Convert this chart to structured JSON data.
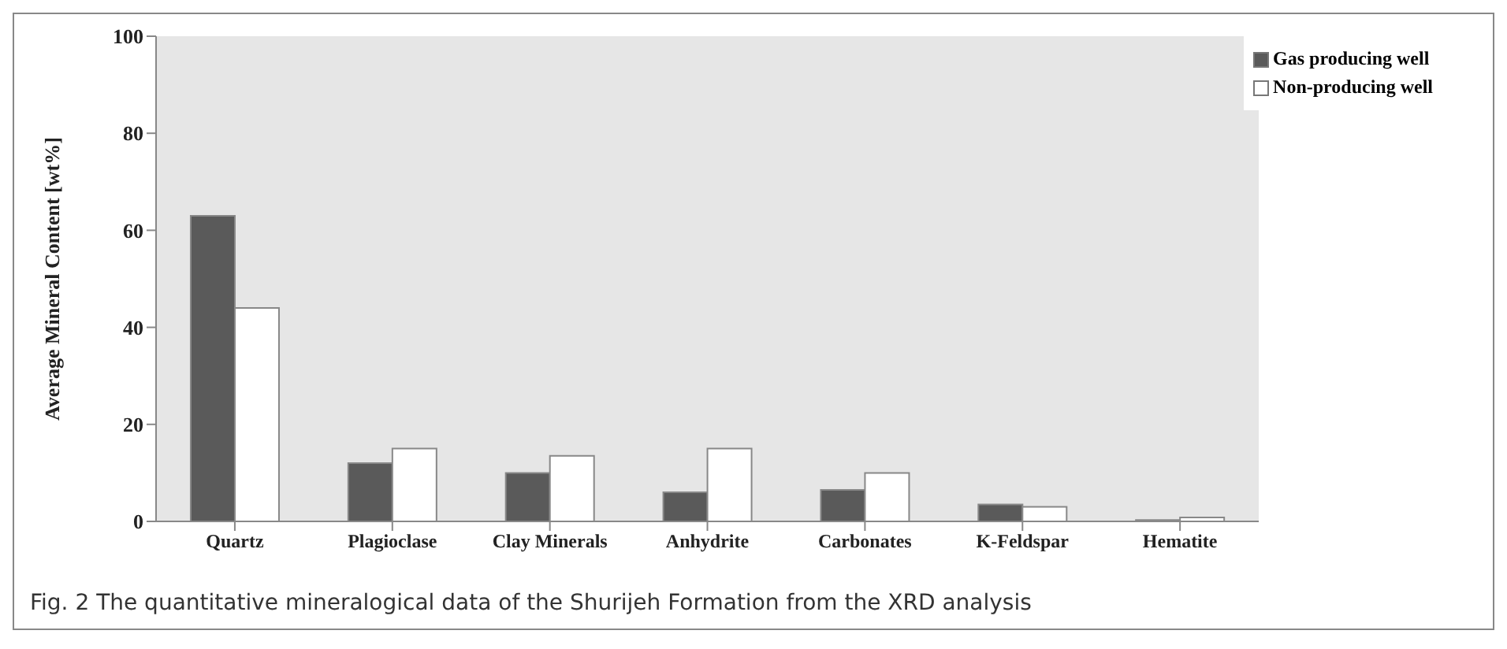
{
  "chart_data": {
    "type": "bar",
    "ylabel": "Average Mineral Content [wt%]",
    "categories": [
      "Quartz",
      "Plagioclase",
      "Clay Minerals",
      "Anhydrite",
      "Carbonates",
      "K-Feldspar",
      "Hematite"
    ],
    "series": [
      {
        "name": "Gas producing well",
        "color": "#5a5a5a",
        "values": [
          63,
          12,
          10,
          6,
          6.5,
          3.5,
          0.3
        ]
      },
      {
        "name": "Non-producing well",
        "color": "#ffffff",
        "values": [
          44,
          15,
          13.5,
          15,
          10,
          3,
          0.8
        ]
      }
    ],
    "ylim": [
      0,
      100
    ],
    "yticks": [
      0,
      20,
      40,
      60,
      80,
      100
    ],
    "grid": false,
    "legend": "top right",
    "annotations": [
      "Fig. 2  The quantitative mineralogical data of the Shurijeh Formation from the XRD analysis"
    ]
  }
}
